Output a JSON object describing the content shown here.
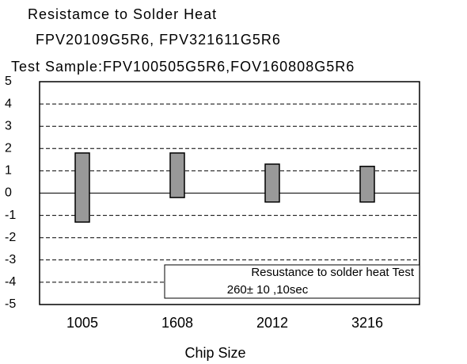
{
  "chart_data": {
    "type": "range_bar",
    "title": "Resistamce to Solder Heat",
    "subtitle": "FPV20109G5R6, FPV321611G5R6",
    "subtitle2": "Test Sample:FPV100505G5R6,FOV160808G5R6",
    "x_label": "Chip Size",
    "categories": [
      "1005",
      "1608",
      "2012",
      "3216"
    ],
    "values": [
      [
        -1.3,
        1.8
      ],
      [
        -0.2,
        1.8
      ],
      [
        -0.4,
        1.3
      ],
      [
        -0.4,
        1.2
      ]
    ],
    "color": "#999999",
    "ylim": [
      -5,
      5
    ],
    "yticks": [
      -5,
      -4,
      -3,
      -2,
      -1,
      0,
      1,
      2,
      3,
      4,
      5
    ],
    "grid": true,
    "annotations": [
      "Resustance to solder heat Test",
      "260± 10 ,10sec"
    ]
  }
}
